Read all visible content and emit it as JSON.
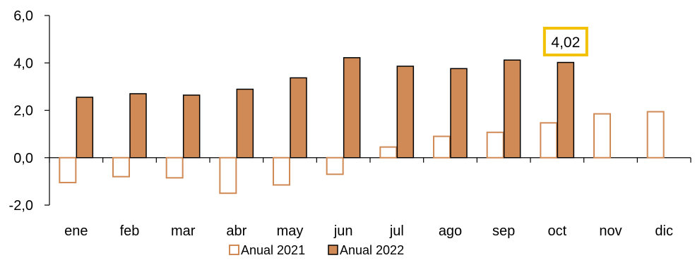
{
  "chart_data": {
    "type": "bar",
    "categories": [
      "ene",
      "feb",
      "mar",
      "abr",
      "may",
      "jun",
      "jul",
      "ago",
      "sep",
      "oct",
      "nov",
      "dic"
    ],
    "series": [
      {
        "name": "Anual 2021",
        "values": [
          -1.05,
          -0.8,
          -0.85,
          -1.5,
          -1.15,
          -0.7,
          0.45,
          0.9,
          1.07,
          1.47,
          1.85,
          1.94
        ],
        "style": "hollow",
        "color": "#D08A55"
      },
      {
        "name": "Anual 2022",
        "values": [
          2.55,
          2.7,
          2.64,
          2.89,
          3.37,
          4.22,
          3.86,
          3.76,
          4.12,
          4.02,
          null,
          null
        ],
        "style": "filled",
        "color": "#D08A55"
      }
    ],
    "y_ticks": [
      "6,0",
      "4,0",
      "2,0",
      "0,0",
      "-2,0"
    ],
    "y_tick_values": [
      6,
      4,
      2,
      0,
      -2
    ],
    "ylim": [
      -2,
      6
    ],
    "grid": false,
    "legend_position": "bottom",
    "annotation": {
      "text": "4,02",
      "category": "oct",
      "series": "Anual 2022",
      "value": 4.02,
      "border_color": "#F2C100"
    },
    "title": "",
    "xlabel": "",
    "ylabel": ""
  }
}
